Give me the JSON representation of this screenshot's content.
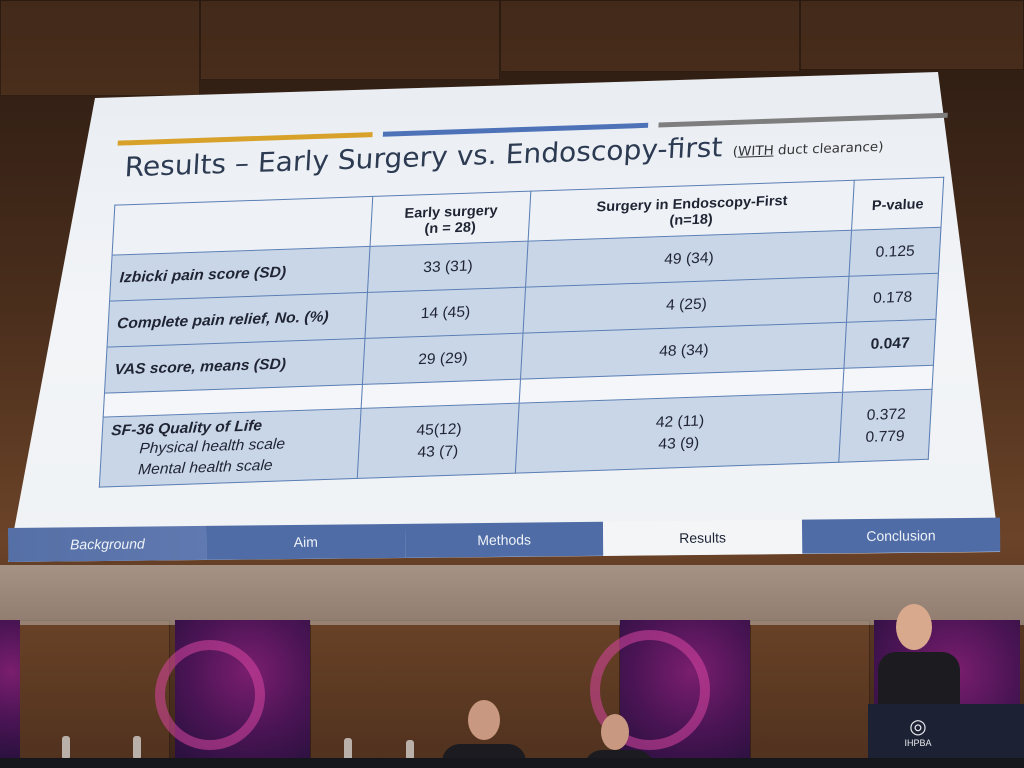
{
  "slide": {
    "title": "Results – Early Surgery vs. Endoscopy-first",
    "title_note_prefix": "WITH",
    "title_note_rest": " duct clearance)",
    "title_note_open": "(",
    "colors": {
      "gold": "#d7a12a",
      "blue": "#4d72b8",
      "gray": "#7e7e7e",
      "title": "#2c3a52"
    }
  },
  "table": {
    "headers": [
      {
        "line1": "Early surgery",
        "line2": "(n = 28)"
      },
      {
        "line1": "Surgery in Endoscopy-First",
        "line2": "(n=18)"
      },
      {
        "line1": "P-value",
        "line2": ""
      }
    ],
    "rows": [
      {
        "label": "Izbicki pain score (SD)",
        "early": "33 (31)",
        "endo": "49 (34)",
        "p": "0.125"
      },
      {
        "label": "Complete pain relief, No. (%)",
        "early": "14 (45)",
        "endo": "4 (25)",
        "p": "0.178"
      },
      {
        "label": "VAS score, means (SD)",
        "early": "29 (29)",
        "endo": "48 (34)",
        "p": "0.047"
      }
    ],
    "sf36": {
      "label": "SF-36 Quality of Life",
      "physical_label": "Physical health scale",
      "mental_label": "Mental health scale",
      "early_physical": "45(12)",
      "early_mental": "43 (7)",
      "endo_physical": "42 (11)",
      "endo_mental": "43 (9)",
      "p_physical": "0.372",
      "p_mental": "0.779"
    }
  },
  "nav": {
    "items": [
      "Background",
      "Aim",
      "Methods",
      "Results",
      "Conclusion"
    ],
    "active": "Results"
  },
  "podium": {
    "logo_text": "IHPBA"
  }
}
